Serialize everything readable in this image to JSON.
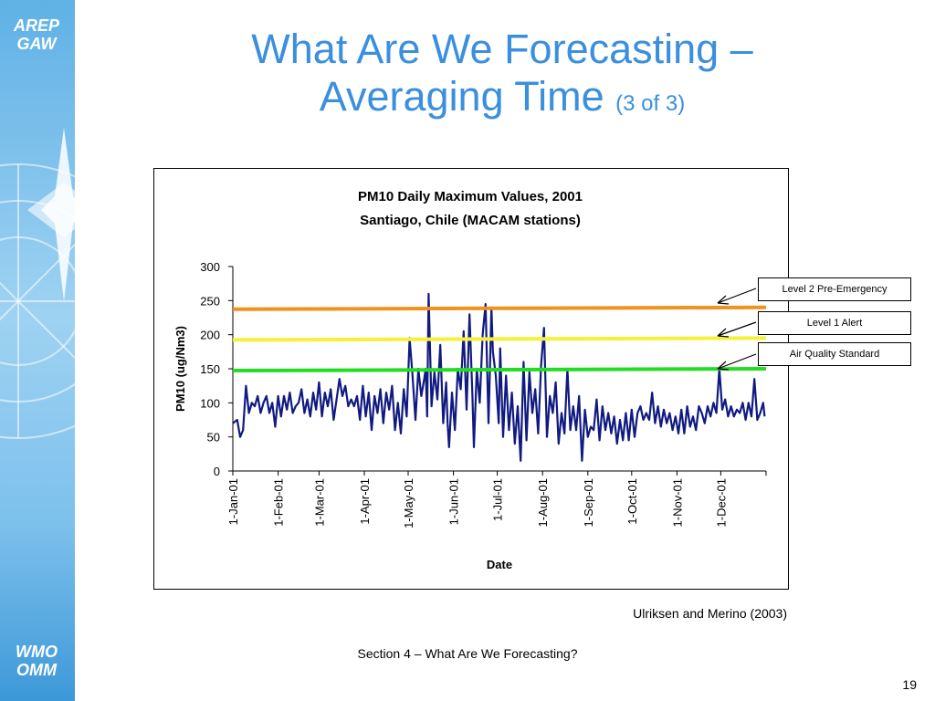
{
  "branding": {
    "top_logo_line1": "AREP",
    "top_logo_line2": "GAW",
    "bottom_logo_line1": "WMO",
    "bottom_logo_line2": "OMM"
  },
  "slide": {
    "title_line1": "What Are We Forecasting –",
    "title_line2": "Averaging Time",
    "title_suffix": "(3 of 3)",
    "credit": "Ulriksen and Merino (2003)",
    "footer": "Section 4 – What Are We Forecasting?",
    "page_number": "19"
  },
  "chart_data": {
    "type": "line",
    "title": "PM10  Daily Maximum Values, 2001",
    "subtitle": "Santiago, Chile (MACAM stations)",
    "xlabel": "Date",
    "ylabel": "PM10 (ug/Nm3)",
    "ylim": [
      0,
      300
    ],
    "yticks": [
      "0",
      "50",
      "100",
      "150",
      "200",
      "250",
      "300"
    ],
    "xlim_days": [
      0,
      365
    ],
    "xticks": [
      {
        "label": "1-Jan-01",
        "day": 0
      },
      {
        "label": "1-Feb-01",
        "day": 31
      },
      {
        "label": "1-Mar-01",
        "day": 59
      },
      {
        "label": "1-Apr-01",
        "day": 90
      },
      {
        "label": "1-May-01",
        "day": 120
      },
      {
        "label": "1-Jun-01",
        "day": 151
      },
      {
        "label": "1-Jul-01",
        "day": 181
      },
      {
        "label": "1-Aug-01",
        "day": 212
      },
      {
        "label": "1-Sep-01",
        "day": 243
      },
      {
        "label": "1-Oct-01",
        "day": 273
      },
      {
        "label": "1-Nov-01",
        "day": 304
      },
      {
        "label": "1-Dec-01",
        "day": 334
      }
    ],
    "grid": false,
    "thresholds": [
      {
        "name": "Level 2 Pre-Emergency",
        "value": 240,
        "color": "#f0921e"
      },
      {
        "name": "Level 1 Alert",
        "value": 195,
        "color": "#f5f03a"
      },
      {
        "name": "Air Quality Standard",
        "value": 150,
        "color": "#22dd22"
      }
    ],
    "series": [
      {
        "color": "#101a80",
        "points": [
          [
            0,
            70
          ],
          [
            3,
            75
          ],
          [
            5,
            50
          ],
          [
            7,
            60
          ],
          [
            9,
            125
          ],
          [
            11,
            85
          ],
          [
            13,
            100
          ],
          [
            15,
            95
          ],
          [
            17,
            110
          ],
          [
            19,
            85
          ],
          [
            21,
            100
          ],
          [
            23,
            110
          ],
          [
            25,
            85
          ],
          [
            27,
            100
          ],
          [
            29,
            65
          ],
          [
            31,
            110
          ],
          [
            33,
            80
          ],
          [
            35,
            110
          ],
          [
            37,
            90
          ],
          [
            39,
            115
          ],
          [
            41,
            85
          ],
          [
            43,
            95
          ],
          [
            45,
            100
          ],
          [
            47,
            120
          ],
          [
            49,
            85
          ],
          [
            51,
            105
          ],
          [
            53,
            80
          ],
          [
            55,
            115
          ],
          [
            57,
            90
          ],
          [
            59,
            130
          ],
          [
            61,
            80
          ],
          [
            63,
            115
          ],
          [
            65,
            95
          ],
          [
            67,
            120
          ],
          [
            69,
            75
          ],
          [
            71,
            105
          ],
          [
            73,
            135
          ],
          [
            75,
            110
          ],
          [
            77,
            125
          ],
          [
            79,
            95
          ],
          [
            81,
            105
          ],
          [
            83,
            95
          ],
          [
            85,
            110
          ],
          [
            87,
            75
          ],
          [
            89,
            125
          ],
          [
            91,
            80
          ],
          [
            93,
            115
          ],
          [
            95,
            60
          ],
          [
            97,
            110
          ],
          [
            99,
            85
          ],
          [
            101,
            120
          ],
          [
            103,
            70
          ],
          [
            105,
            115
          ],
          [
            107,
            90
          ],
          [
            109,
            125
          ],
          [
            111,
            60
          ],
          [
            113,
            100
          ],
          [
            115,
            55
          ],
          [
            117,
            120
          ],
          [
            119,
            80
          ],
          [
            121,
            195
          ],
          [
            123,
            140
          ],
          [
            125,
            75
          ],
          [
            127,
            150
          ],
          [
            129,
            110
          ],
          [
            131,
            135
          ],
          [
            132,
            150
          ],
          [
            133,
            80
          ],
          [
            134,
            260
          ],
          [
            136,
            95
          ],
          [
            138,
            145
          ],
          [
            140,
            105
          ],
          [
            142,
            185
          ],
          [
            144,
            70
          ],
          [
            146,
            130
          ],
          [
            147,
            70
          ],
          [
            148,
            35
          ],
          [
            150,
            115
          ],
          [
            152,
            60
          ],
          [
            154,
            150
          ],
          [
            156,
            120
          ],
          [
            158,
            205
          ],
          [
            160,
            90
          ],
          [
            162,
            230
          ],
          [
            164,
            110
          ],
          [
            165,
            35
          ],
          [
            167,
            150
          ],
          [
            169,
            100
          ],
          [
            171,
            200
          ],
          [
            173,
            245
          ],
          [
            175,
            70
          ],
          [
            176,
            150
          ],
          [
            177,
            240
          ],
          [
            178,
            175
          ],
          [
            180,
            140
          ],
          [
            182,
            70
          ],
          [
            183,
            180
          ],
          [
            185,
            50
          ],
          [
            187,
            140
          ],
          [
            189,
            60
          ],
          [
            191,
            115
          ],
          [
            193,
            40
          ],
          [
            195,
            95
          ],
          [
            197,
            15
          ],
          [
            199,
            160
          ],
          [
            201,
            45
          ],
          [
            203,
            145
          ],
          [
            205,
            85
          ],
          [
            207,
            120
          ],
          [
            209,
            55
          ],
          [
            211,
            155
          ],
          [
            213,
            210
          ],
          [
            215,
            50
          ],
          [
            217,
            110
          ],
          [
            219,
            85
          ],
          [
            221,
            130
          ],
          [
            223,
            40
          ],
          [
            225,
            85
          ],
          [
            227,
            55
          ],
          [
            229,
            150
          ],
          [
            231,
            60
          ],
          [
            233,
            95
          ],
          [
            235,
            60
          ],
          [
            237,
            110
          ],
          [
            239,
            15
          ],
          [
            241,
            90
          ],
          [
            243,
            50
          ],
          [
            245,
            65
          ],
          [
            247,
            60
          ],
          [
            249,
            105
          ],
          [
            251,
            45
          ],
          [
            253,
            95
          ],
          [
            255,
            60
          ],
          [
            257,
            85
          ],
          [
            259,
            55
          ],
          [
            261,
            80
          ],
          [
            263,
            40
          ],
          [
            265,
            75
          ],
          [
            267,
            45
          ],
          [
            269,
            85
          ],
          [
            271,
            45
          ],
          [
            273,
            90
          ],
          [
            275,
            50
          ],
          [
            277,
            85
          ],
          [
            279,
            95
          ],
          [
            281,
            75
          ],
          [
            283,
            85
          ],
          [
            285,
            75
          ],
          [
            287,
            115
          ],
          [
            289,
            70
          ],
          [
            291,
            95
          ],
          [
            293,
            65
          ],
          [
            295,
            90
          ],
          [
            297,
            70
          ],
          [
            299,
            85
          ],
          [
            301,
            60
          ],
          [
            303,
            80
          ],
          [
            305,
            55
          ],
          [
            307,
            90
          ],
          [
            309,
            55
          ],
          [
            311,
            95
          ],
          [
            313,
            65
          ],
          [
            315,
            80
          ],
          [
            317,
            60
          ],
          [
            319,
            95
          ],
          [
            321,
            85
          ],
          [
            323,
            70
          ],
          [
            325,
            95
          ],
          [
            327,
            80
          ],
          [
            329,
            100
          ],
          [
            331,
            85
          ],
          [
            333,
            150
          ],
          [
            335,
            90
          ],
          [
            337,
            105
          ],
          [
            339,
            80
          ],
          [
            341,
            95
          ],
          [
            343,
            80
          ],
          [
            345,
            90
          ],
          [
            347,
            85
          ],
          [
            349,
            100
          ],
          [
            351,
            75
          ],
          [
            353,
            100
          ],
          [
            355,
            80
          ],
          [
            357,
            135
          ],
          [
            359,
            75
          ],
          [
            361,
            85
          ],
          [
            363,
            100
          ],
          [
            364,
            80
          ]
        ]
      }
    ]
  }
}
